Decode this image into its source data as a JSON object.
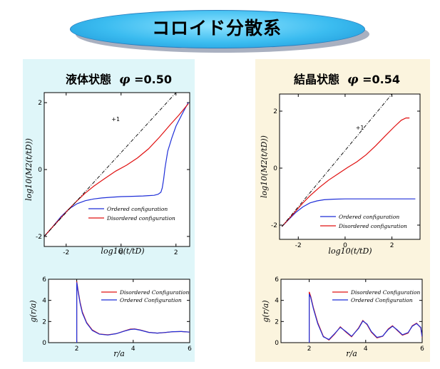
{
  "banner": {
    "title": "コロイド分散系"
  },
  "panels": [
    {
      "title": "液体状態",
      "phi_symbol": "φ",
      "phi_value": "=0.50"
    },
    {
      "title": "結晶状態",
      "phi_symbol": "φ",
      "phi_value": "=0.54"
    }
  ],
  "colors": {
    "ordered": "#1f2fd8",
    "disordered": "#e01010",
    "slope": "#000000",
    "panel_left": "#dff6f9",
    "panel_right": "#fbf4de"
  },
  "chart_data": [
    {
      "id": "msd-liquid",
      "type": "line",
      "xlabel": "log10(t/tD)",
      "ylabel": "log10(M2(t/tD))",
      "xlim": [
        -2.8,
        2.5
      ],
      "ylim": [
        -2.3,
        2.3
      ],
      "xticks": [
        "-2",
        "0",
        "2"
      ],
      "xtick_values": [
        -2,
        0,
        2
      ],
      "yticks": [
        "-2",
        "0",
        "2"
      ],
      "ytick_values": [
        -2,
        0,
        2
      ],
      "annotation": "+1",
      "legend_position": "bottom-right",
      "series": [
        {
          "name": "Ordered configuration",
          "color": "ordered",
          "x": [
            -2.8,
            -2.5,
            -2.2,
            -1.9,
            -1.6,
            -1.3,
            -1.0,
            -0.7,
            -0.4,
            0.0,
            0.4,
            0.8,
            1.0,
            1.2,
            1.35,
            1.45,
            1.5,
            1.55,
            1.6,
            1.7,
            1.85,
            2.0,
            2.2,
            2.35,
            2.45
          ],
          "y": [
            -2.0,
            -1.72,
            -1.42,
            -1.18,
            -1.02,
            -0.93,
            -0.88,
            -0.85,
            -0.83,
            -0.81,
            -0.8,
            -0.79,
            -0.78,
            -0.77,
            -0.74,
            -0.68,
            -0.55,
            -0.3,
            0.05,
            0.55,
            0.95,
            1.3,
            1.62,
            1.85,
            2.0
          ]
        },
        {
          "name": "Disordered configuration",
          "color": "disordered",
          "x": [
            -2.8,
            -2.5,
            -2.2,
            -1.9,
            -1.6,
            -1.3,
            -1.0,
            -0.6,
            -0.2,
            0.2,
            0.6,
            1.0,
            1.4,
            1.8,
            2.1,
            2.45
          ],
          "y": [
            -2.0,
            -1.72,
            -1.45,
            -1.18,
            -0.93,
            -0.7,
            -0.5,
            -0.27,
            -0.05,
            0.13,
            0.35,
            0.62,
            0.97,
            1.35,
            1.62,
            1.97
          ]
        },
        {
          "name": "+1",
          "color": "slope",
          "dash": true,
          "x": [
            -2.8,
            2.0
          ],
          "y": [
            -2.0,
            2.3
          ]
        }
      ]
    },
    {
      "id": "msd-crystal",
      "type": "line",
      "xlabel": "log10(t/tD)",
      "ylabel": "log10(M2(t/tD))",
      "xlim": [
        -2.8,
        3.2
      ],
      "ylim": [
        -2.5,
        2.6
      ],
      "xticks": [
        "-2",
        "0",
        "2"
      ],
      "xtick_values": [
        -2,
        0,
        2
      ],
      "yticks": [
        "-2",
        "0",
        "2"
      ],
      "ytick_values": [
        -2,
        0,
        2
      ],
      "annotation": "+1",
      "legend_position": "bottom-right",
      "series": [
        {
          "name": "Ordered configuration",
          "color": "ordered",
          "x": [
            -2.7,
            -2.4,
            -2.1,
            -1.8,
            -1.5,
            -1.2,
            -0.9,
            -0.5,
            0.0,
            0.5,
            1.0,
            1.5,
            2.0,
            2.5,
            3.0
          ],
          "y": [
            -2.05,
            -1.8,
            -1.55,
            -1.36,
            -1.22,
            -1.15,
            -1.11,
            -1.09,
            -1.08,
            -1.08,
            -1.08,
            -1.08,
            -1.08,
            -1.08,
            -1.08
          ]
        },
        {
          "name": "Disordered configuration",
          "color": "disordered",
          "x": [
            -2.7,
            -2.4,
            -2.1,
            -1.8,
            -1.5,
            -1.1,
            -0.7,
            -0.3,
            0.1,
            0.5,
            0.9,
            1.3,
            1.7,
            2.1,
            2.4,
            2.6,
            2.75
          ],
          "y": [
            -2.05,
            -1.78,
            -1.5,
            -1.22,
            -0.97,
            -0.68,
            -0.42,
            -0.2,
            0.02,
            0.22,
            0.47,
            0.78,
            1.12,
            1.45,
            1.68,
            1.76,
            1.76
          ]
        },
        {
          "name": "+1",
          "color": "slope",
          "dash": true,
          "x": [
            -2.7,
            2.0
          ],
          "y": [
            -2.05,
            2.6
          ]
        }
      ]
    },
    {
      "id": "gr-liquid",
      "type": "line",
      "xlabel": "r/a",
      "ylabel": "g(r/a)",
      "xlim": [
        1,
        6
      ],
      "ylim": [
        0,
        6
      ],
      "xticks": [
        "2",
        "4",
        "6"
      ],
      "xtick_values": [
        2,
        4,
        6
      ],
      "yticks": [
        "0",
        "2",
        "4",
        "6"
      ],
      "ytick_values": [
        0,
        2,
        4,
        6
      ],
      "legend_position": "top-right",
      "series": [
        {
          "name": "Disordered Configuration",
          "color": "disordered",
          "x": [
            2.0,
            2.0,
            2.05,
            2.12,
            2.2,
            2.35,
            2.55,
            2.8,
            3.1,
            3.4,
            3.7,
            3.9,
            4.05,
            4.25,
            4.55,
            4.85,
            5.1,
            5.4,
            5.7,
            6.0
          ],
          "y": [
            0,
            5.8,
            4.9,
            3.8,
            2.9,
            1.9,
            1.2,
            0.82,
            0.74,
            0.85,
            1.12,
            1.28,
            1.3,
            1.2,
            0.98,
            0.9,
            0.95,
            1.03,
            1.05,
            1.0
          ]
        },
        {
          "name": "Ordered Configuration",
          "color": "ordered",
          "x": [
            2.0,
            2.0,
            2.05,
            2.12,
            2.2,
            2.35,
            2.55,
            2.8,
            3.1,
            3.4,
            3.7,
            3.9,
            4.05,
            4.25,
            4.55,
            4.85,
            5.1,
            5.4,
            5.7,
            6.0
          ],
          "y": [
            0,
            5.7,
            4.8,
            3.7,
            2.8,
            1.85,
            1.15,
            0.8,
            0.72,
            0.85,
            1.1,
            1.25,
            1.28,
            1.18,
            0.97,
            0.9,
            0.96,
            1.04,
            1.05,
            1.0
          ]
        }
      ]
    },
    {
      "id": "gr-crystal",
      "type": "line",
      "xlabel": "r/a",
      "ylabel": "g(r/a)",
      "xlim": [
        1,
        6
      ],
      "ylim": [
        0,
        6
      ],
      "xticks": [
        "2",
        "4",
        "6"
      ],
      "xtick_values": [
        2,
        4,
        6
      ],
      "yticks": [
        "0",
        "2",
        "4",
        "6"
      ],
      "ytick_values": [
        0,
        2,
        4,
        6
      ],
      "legend_position": "top-right",
      "series": [
        {
          "name": "Disordered Configuration",
          "color": "disordered",
          "x": [
            2.0,
            2.0,
            2.05,
            2.15,
            2.3,
            2.5,
            2.7,
            2.9,
            3.1,
            3.3,
            3.5,
            3.75,
            3.9,
            4.05,
            4.2,
            4.4,
            4.6,
            4.8,
            4.95,
            5.1,
            5.3,
            5.5,
            5.65,
            5.8,
            5.95,
            6.0
          ],
          "y": [
            0,
            4.8,
            4.4,
            3.3,
            1.9,
            0.6,
            0.25,
            0.8,
            1.5,
            1.0,
            0.55,
            1.4,
            2.1,
            1.7,
            1.0,
            0.45,
            0.6,
            1.3,
            1.6,
            1.2,
            0.7,
            0.9,
            1.6,
            1.85,
            1.4,
            0.5
          ]
        },
        {
          "name": "Ordered Configuration",
          "color": "ordered",
          "x": [
            2.0,
            2.0,
            2.05,
            2.15,
            2.3,
            2.5,
            2.7,
            2.9,
            3.1,
            3.3,
            3.5,
            3.75,
            3.9,
            4.05,
            4.2,
            4.4,
            4.6,
            4.8,
            4.95,
            5.1,
            5.3,
            5.5,
            5.65,
            5.8,
            5.95,
            6.0
          ],
          "y": [
            0,
            4.6,
            4.3,
            3.2,
            1.8,
            0.55,
            0.3,
            0.85,
            1.45,
            1.05,
            0.6,
            1.35,
            2.05,
            1.75,
            1.05,
            0.5,
            0.62,
            1.25,
            1.55,
            1.25,
            0.75,
            0.95,
            1.55,
            1.8,
            1.45,
            0.55
          ]
        }
      ]
    }
  ]
}
